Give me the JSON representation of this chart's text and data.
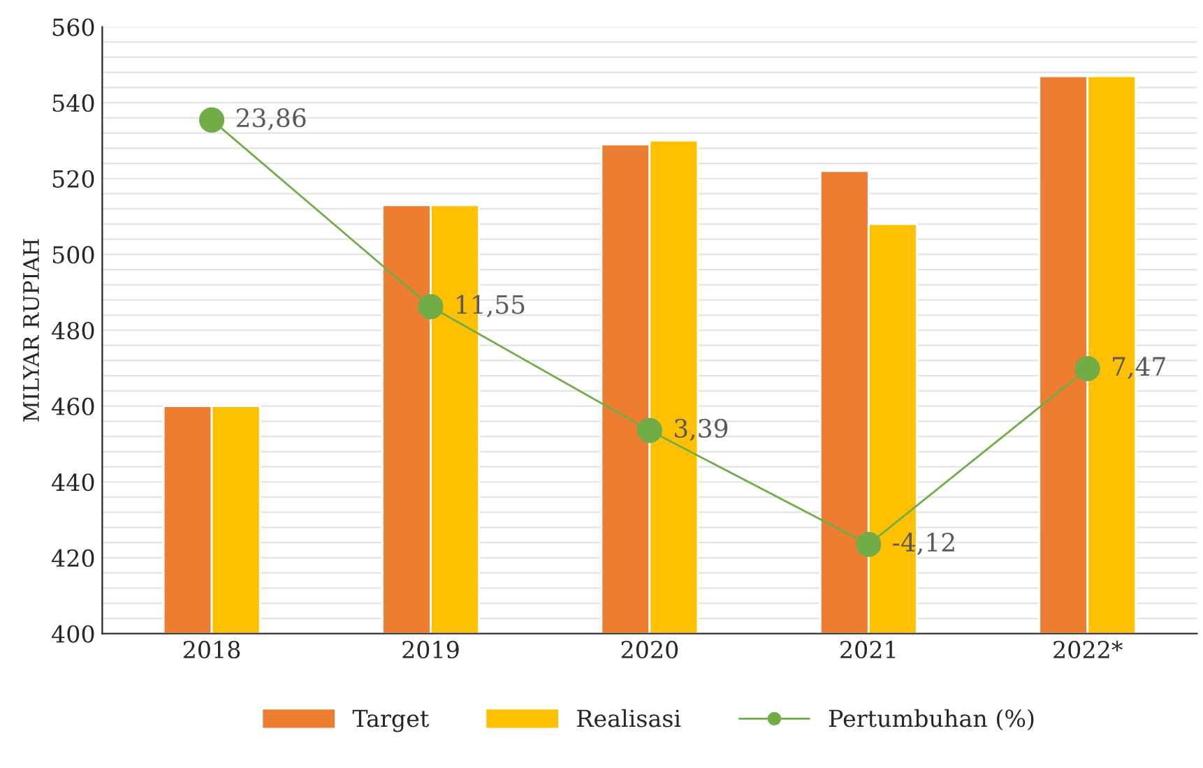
{
  "chart_data": {
    "type": "bar",
    "ylabel": "MILYAR RUPIAH",
    "categories": [
      "2018",
      "2019",
      "2020",
      "2021",
      "2022*"
    ],
    "series": [
      {
        "name": "Target",
        "color": "#ed7d31",
        "values": [
          460,
          513,
          529,
          522,
          547
        ]
      },
      {
        "name": "Realisasi",
        "color": "#ffc000",
        "values": [
          460,
          513,
          530,
          508,
          547
        ]
      },
      {
        "name": "Pertumbuhan (%)",
        "type": "line",
        "axis": "y2",
        "color": "#70ad47",
        "marker": "circle",
        "values": [
          23.86,
          11.55,
          3.39,
          -4.12,
          7.47
        ],
        "value_labels": [
          "23,86",
          "11,55",
          "3,39",
          "-4,12",
          "7,47"
        ]
      }
    ],
    "ylim": [
      400,
      560
    ],
    "yticks": [
      400,
      {
        "value": 404,
        "label": null
      },
      {
        "value": 408,
        "label": null
      },
      {
        "value": 412,
        "label": null
      },
      {
        "value": 416,
        "label": null
      },
      420,
      {
        "value": 424,
        "label": null
      },
      {
        "value": 428,
        "label": null
      },
      {
        "value": 432,
        "label": null
      },
      {
        "value": 436,
        "label": null
      },
      440,
      {
        "value": 444,
        "label": null
      },
      {
        "value": 448,
        "label": null
      },
      {
        "value": 452,
        "label": null
      },
      {
        "value": 456,
        "label": null
      },
      460,
      {
        "value": 464,
        "label": null
      },
      {
        "value": 468,
        "label": null
      },
      {
        "value": 472,
        "label": null
      },
      {
        "value": 476,
        "label": null
      },
      480,
      {
        "value": 484,
        "label": null
      },
      {
        "value": 488,
        "label": null
      },
      {
        "value": 492,
        "label": null
      },
      {
        "value": 496,
        "label": null
      },
      500,
      {
        "value": 504,
        "label": null
      },
      {
        "value": 508,
        "label": null
      },
      {
        "value": 512,
        "label": null
      },
      {
        "value": 516,
        "label": null
      },
      520,
      {
        "value": 524,
        "label": null
      },
      {
        "value": 528,
        "label": null
      },
      {
        "value": 532,
        "label": null
      },
      {
        "value": 536,
        "label": null
      },
      540,
      {
        "value": 544,
        "label": null
      },
      {
        "value": 548,
        "label": null
      },
      {
        "value": 552,
        "label": null
      },
      {
        "value": 556,
        "label": null
      },
      560
    ],
    "y2lim": [
      -10,
      30
    ],
    "grid": "y",
    "legend": "bottom"
  }
}
